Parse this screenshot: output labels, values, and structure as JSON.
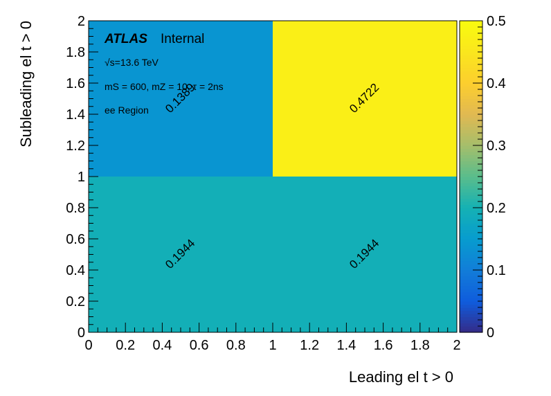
{
  "chart_data": {
    "type": "heatmap",
    "x_bins": [
      0,
      1,
      2
    ],
    "y_bins": [
      0,
      1,
      2
    ],
    "cells": [
      {
        "x": [
          0,
          1
        ],
        "y": [
          0,
          1
        ],
        "value": 0.1944,
        "label": "0.1944"
      },
      {
        "x": [
          1,
          2
        ],
        "y": [
          0,
          1
        ],
        "value": 0.1944,
        "label": "0.1944"
      },
      {
        "x": [
          0,
          1
        ],
        "y": [
          1,
          2
        ],
        "value": 0.1389,
        "label": "0.1389"
      },
      {
        "x": [
          1,
          2
        ],
        "y": [
          1,
          2
        ],
        "value": 0.4722,
        "label": "0.4722"
      }
    ],
    "xlabel": "Leading el t > 0",
    "ylabel": "Subleading el t > 0",
    "xlim": [
      0,
      2
    ],
    "ylim": [
      0,
      2
    ],
    "x_ticks": [
      "0",
      "0.2",
      "0.4",
      "0.6",
      "0.8",
      "1",
      "1.2",
      "1.4",
      "1.6",
      "1.8",
      "2"
    ],
    "y_ticks": [
      "0",
      "0.2",
      "0.4",
      "0.6",
      "0.8",
      "1",
      "1.2",
      "1.4",
      "1.6",
      "1.8",
      "2"
    ],
    "zlim": [
      0,
      0.5
    ],
    "z_ticks": [
      "0",
      "0.1",
      "0.2",
      "0.3",
      "0.4",
      "0.5"
    ],
    "colormap": "viridis-like",
    "annotations": {
      "atlas": "ATLAS",
      "internal": "Internal",
      "energy": "√s=13.6 TeV",
      "params": "mS = 600, mZ = 10, τ = 2ns",
      "region": "ee Region"
    },
    "grid": false,
    "legend": "colorbar-right"
  }
}
